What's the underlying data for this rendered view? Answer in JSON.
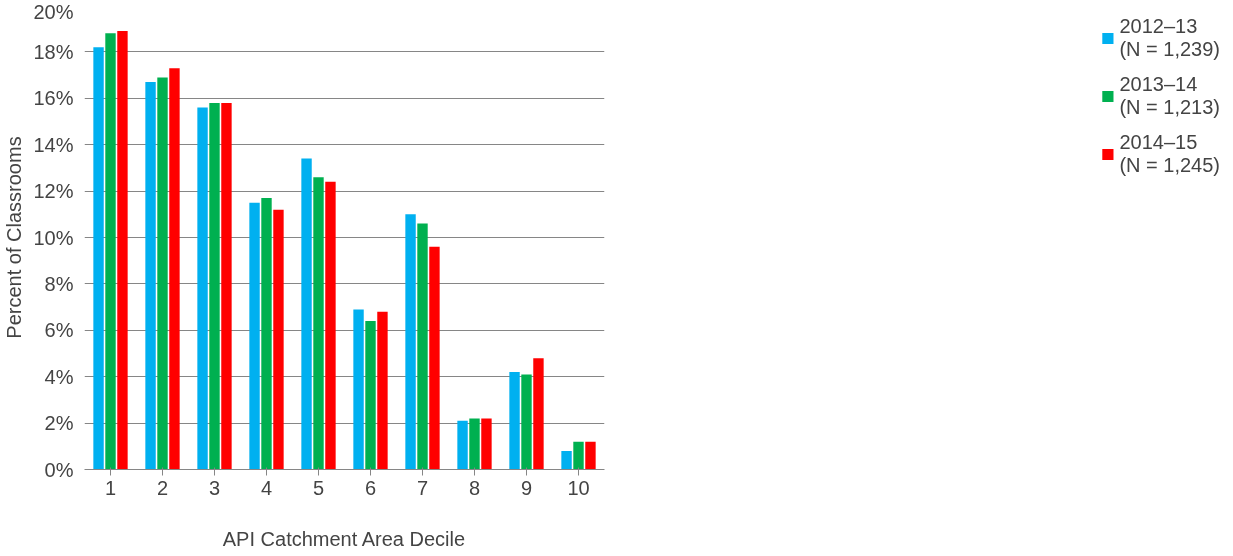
{
  "chart_data": {
    "type": "bar",
    "xlabel": "API Catchment Area Decile",
    "ylabel": "Percent of Classrooms",
    "categories": [
      "1",
      "2",
      "3",
      "4",
      "5",
      "6",
      "7",
      "8",
      "9",
      "10"
    ],
    "series": [
      {
        "name": "2012–13\n(N = 1,239)",
        "color": "#00b0f0",
        "values": [
          18.2,
          16.7,
          15.6,
          11.5,
          13.4,
          6.9,
          11.0,
          2.1,
          4.2,
          0.8
        ]
      },
      {
        "name": "2013–14\n(N = 1,213)",
        "color": "#00b050",
        "values": [
          18.8,
          16.9,
          15.8,
          11.7,
          12.6,
          6.4,
          10.6,
          2.2,
          4.1,
          1.2
        ]
      },
      {
        "name": "2014–15\n(N = 1,245)",
        "color": "#ff0000",
        "values": [
          18.9,
          17.3,
          15.8,
          11.2,
          12.4,
          6.8,
          9.6,
          2.2,
          4.8,
          1.2
        ]
      }
    ],
    "ylim": [
      0,
      20
    ],
    "yticks": [
      {
        "value": 0,
        "label": "0%"
      },
      {
        "value": 2,
        "label": "2%"
      },
      {
        "value": 4,
        "label": "4%"
      },
      {
        "value": 6,
        "label": "6%"
      },
      {
        "value": 8,
        "label": "8%"
      },
      {
        "value": 10,
        "label": "10%"
      },
      {
        "value": 12,
        "label": "12%"
      },
      {
        "value": 14,
        "label": "14%"
      },
      {
        "value": 16,
        "label": "16%"
      },
      {
        "value": 18,
        "label": "18%"
      },
      {
        "value": 20,
        "label": "20%"
      }
    ],
    "grid": "y",
    "legend": "right"
  }
}
